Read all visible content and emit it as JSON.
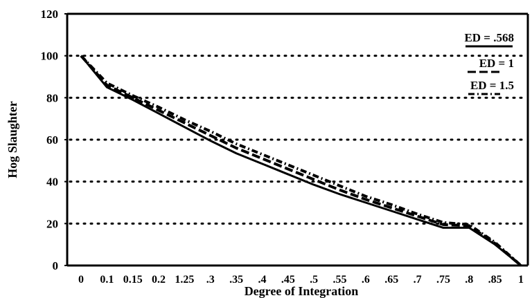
{
  "chart_data": {
    "type": "line",
    "title": "",
    "xlabel": "Degree of Integration",
    "ylabel": "Hog Slaughter",
    "categories": [
      "0",
      "0.1",
      "0.15",
      "0.2",
      "1.25",
      ".3",
      ".35",
      ".4",
      ".45",
      ".5",
      ".55",
      ".6",
      ".65",
      ".7",
      ".75",
      ".8",
      ".85",
      "1"
    ],
    "yticks": [
      "0",
      "20",
      "40",
      "60",
      "80",
      "100",
      "120"
    ],
    "ylim": [
      0,
      120
    ],
    "grid": "dotted horizontal",
    "legend": "top-right",
    "series": [
      {
        "name": "ED = .568",
        "style": "solid",
        "values": [
          100,
          85,
          79,
          72.5,
          66,
          59.5,
          53.5,
          48.5,
          43.5,
          38.5,
          34,
          30,
          26,
          22,
          18,
          18,
          10,
          0
        ]
      },
      {
        "name": "ED = 1",
        "style": "dashed",
        "values": [
          100,
          86,
          80,
          74,
          68,
          62,
          56,
          51,
          46,
          41,
          36,
          31.5,
          27.5,
          23.5,
          19.5,
          19,
          10.5,
          0
        ]
      },
      {
        "name": "ED = 1.5",
        "style": "dash-dot",
        "values": [
          100,
          87,
          81,
          75.5,
          69.5,
          64,
          58,
          53,
          48,
          43,
          38,
          33,
          29,
          24.5,
          20.5,
          19.5,
          11,
          0
        ]
      }
    ]
  }
}
